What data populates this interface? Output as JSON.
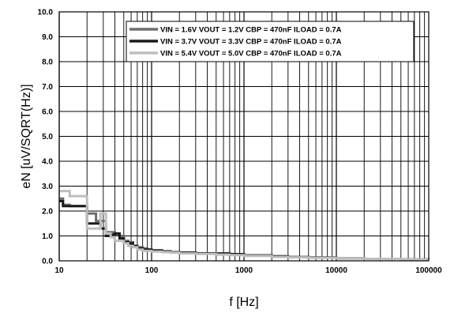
{
  "chart_data": {
    "type": "line",
    "title": "",
    "xlabel": "f [Hz]",
    "ylabel": "eN [uV/SQRT(Hz)]",
    "x_scale": "log",
    "xlim": [
      10,
      100000
    ],
    "ylim": [
      0,
      10
    ],
    "x_ticks": [
      "10",
      "100",
      "1000",
      "10000",
      "100000"
    ],
    "y_ticks": [
      "0.0",
      "1.0",
      "2.0",
      "3.0",
      "4.0",
      "5.0",
      "6.0",
      "7.0",
      "8.0",
      "9.0",
      "10.0"
    ],
    "grid": true,
    "legend_position": "top-right",
    "series": [
      {
        "name": "VIN = 1.6V VOUT = 1.2V CBP = 470nF ILOAD = 0.7A",
        "color": "#6e6e6e",
        "x": [
          10,
          11,
          13,
          16,
          20,
          22,
          25,
          28,
          32,
          36,
          40,
          45,
          50,
          56,
          63,
          70,
          80,
          90,
          100,
          130,
          160,
          200,
          300,
          500,
          700,
          1000,
          2000,
          3000,
          5000,
          10000,
          20000,
          50000,
          100000
        ],
        "y": [
          2.5,
          2.25,
          2.2,
          2.2,
          1.9,
          1.9,
          1.6,
          1.6,
          1.15,
          1.15,
          1.05,
          1.0,
          0.8,
          0.75,
          0.6,
          0.55,
          0.5,
          0.45,
          0.4,
          0.38,
          0.35,
          0.32,
          0.3,
          0.28,
          0.25,
          0.22,
          0.18,
          0.15,
          0.13,
          0.1,
          0.08,
          0.06,
          0.05
        ]
      },
      {
        "name": "VIN = 3.7V VOUT = 3.3V CBP = 470nF ILOAD = 0.7A",
        "color": "#1a1a1a",
        "x": [
          10,
          11,
          13,
          16,
          20,
          22,
          25,
          28,
          32,
          36,
          40,
          45,
          50,
          56,
          63,
          70,
          80,
          90,
          100,
          130,
          160,
          200,
          300,
          500,
          700,
          1000,
          2000,
          3000,
          5000,
          10000,
          20000,
          50000,
          100000
        ],
        "y": [
          2.4,
          2.2,
          2.2,
          2.2,
          1.5,
          1.5,
          1.5,
          1.3,
          1.0,
          1.05,
          1.1,
          0.9,
          0.75,
          0.7,
          0.6,
          0.5,
          0.45,
          0.45,
          0.42,
          0.38,
          0.35,
          0.33,
          0.3,
          0.3,
          0.27,
          0.22,
          0.18,
          0.15,
          0.13,
          0.1,
          0.08,
          0.06,
          0.05
        ]
      },
      {
        "name": "VIN = 5.4V VOUT = 5.0V CBP = 470nF ILOAD = 0.7A",
        "color": "#bdbdbd",
        "x": [
          10,
          11,
          13,
          16,
          20,
          22,
          25,
          28,
          32,
          36,
          40,
          45,
          50,
          56,
          63,
          70,
          80,
          90,
          100,
          130,
          160,
          200,
          300,
          500,
          700,
          1000,
          2000,
          3000,
          5000,
          10000,
          20000,
          50000,
          100000
        ],
        "y": [
          2.8,
          2.8,
          2.6,
          2.6,
          1.3,
          1.3,
          1.3,
          1.9,
          1.1,
          0.95,
          0.8,
          0.8,
          0.7,
          0.6,
          0.55,
          0.45,
          0.4,
          0.4,
          0.37,
          0.35,
          0.33,
          0.3,
          0.28,
          0.25,
          0.23,
          0.2,
          0.16,
          0.14,
          0.12,
          0.1,
          0.08,
          0.06,
          0.05
        ]
      }
    ]
  }
}
